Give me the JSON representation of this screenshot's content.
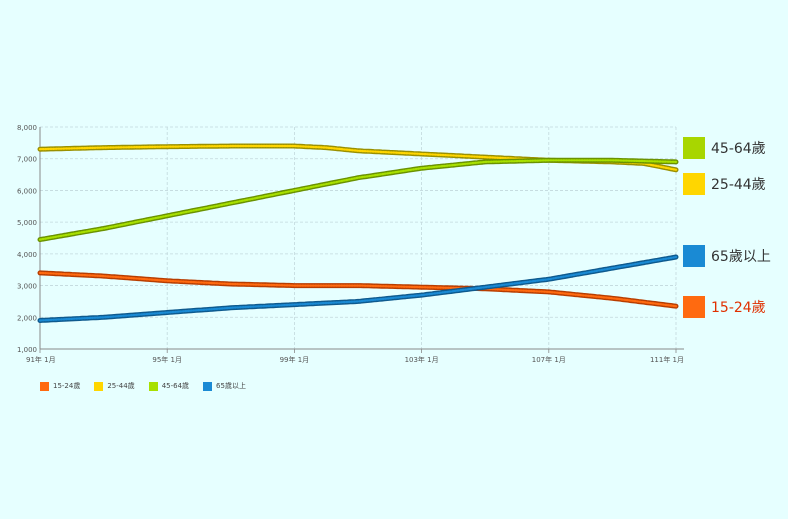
{
  "chart_data": {
    "type": "line",
    "title": "",
    "xlabel": "",
    "ylabel": "",
    "ylim": [
      1000,
      8000
    ],
    "yticks": [
      "1,000",
      "2,000",
      "3,000",
      "4,000",
      "5,000",
      "6,000",
      "7,000",
      "8,000"
    ],
    "ytick_values": [
      1000,
      2000,
      3000,
      4000,
      5000,
      6000,
      7000,
      8000
    ],
    "xticks": [
      "91年 1月",
      "95年 1月",
      "99年 1月",
      "103年 1月",
      "107年 1月",
      "111年 1月"
    ],
    "xtick_values": [
      91,
      95,
      99,
      103,
      107,
      111
    ],
    "x_start": 91,
    "x_end": 111,
    "grid": true,
    "legend_position": "bottom",
    "series": [
      {
        "name": "15-24歲",
        "color": "#b83d00",
        "fill": "#ff6a10",
        "x": [
          91,
          93,
          95,
          97,
          99,
          101,
          103,
          105,
          107,
          109,
          111
        ],
        "values": [
          3400,
          3300,
          3150,
          3050,
          3000,
          3000,
          2950,
          2900,
          2800,
          2600,
          2350
        ]
      },
      {
        "name": "25-44歲",
        "color": "#9a9000",
        "fill": "#ffd600",
        "x": [
          91,
          93,
          95,
          97,
          99,
          100,
          101,
          103,
          105,
          107,
          109,
          110,
          111
        ],
        "values": [
          7300,
          7350,
          7380,
          7400,
          7400,
          7350,
          7250,
          7150,
          7050,
          6950,
          6900,
          6850,
          6650
        ]
      },
      {
        "name": "45-64歲",
        "color": "#6a9200",
        "fill": "#a8e000",
        "x": [
          91,
          93,
          95,
          97,
          99,
          101,
          103,
          105,
          107,
          109,
          111
        ],
        "values": [
          4450,
          4800,
          5200,
          5600,
          6000,
          6400,
          6700,
          6900,
          6950,
          6950,
          6900
        ]
      },
      {
        "name": "65歲以上",
        "color": "#0e5a8e",
        "fill": "#1a8ad4",
        "x": [
          91,
          93,
          95,
          97,
          99,
          101,
          103,
          105,
          107,
          109,
          111
        ],
        "values": [
          1900,
          2000,
          2150,
          2300,
          2400,
          2500,
          2700,
          2950,
          3200,
          3550,
          3900
        ]
      }
    ]
  },
  "side_legend": [
    {
      "label": "45-64歲",
      "color": "#a8d600",
      "text_color": "#333333"
    },
    {
      "label": "25-44歲",
      "color": "#ffd600",
      "text_color": "#333333"
    },
    {
      "label": "65歲以上",
      "color": "#1a8ad4",
      "text_color": "#333333"
    },
    {
      "label": "15-24歲",
      "color": "#ff6a10",
      "text_color": "#e03000"
    }
  ],
  "bottom_legend": [
    {
      "label": "15-24歲",
      "color": "#ff6a10"
    },
    {
      "label": "25-44歲",
      "color": "#ffd600"
    },
    {
      "label": "45-64歲",
      "color": "#a8e000"
    },
    {
      "label": "65歲以上",
      "color": "#1a8ad4"
    }
  ]
}
